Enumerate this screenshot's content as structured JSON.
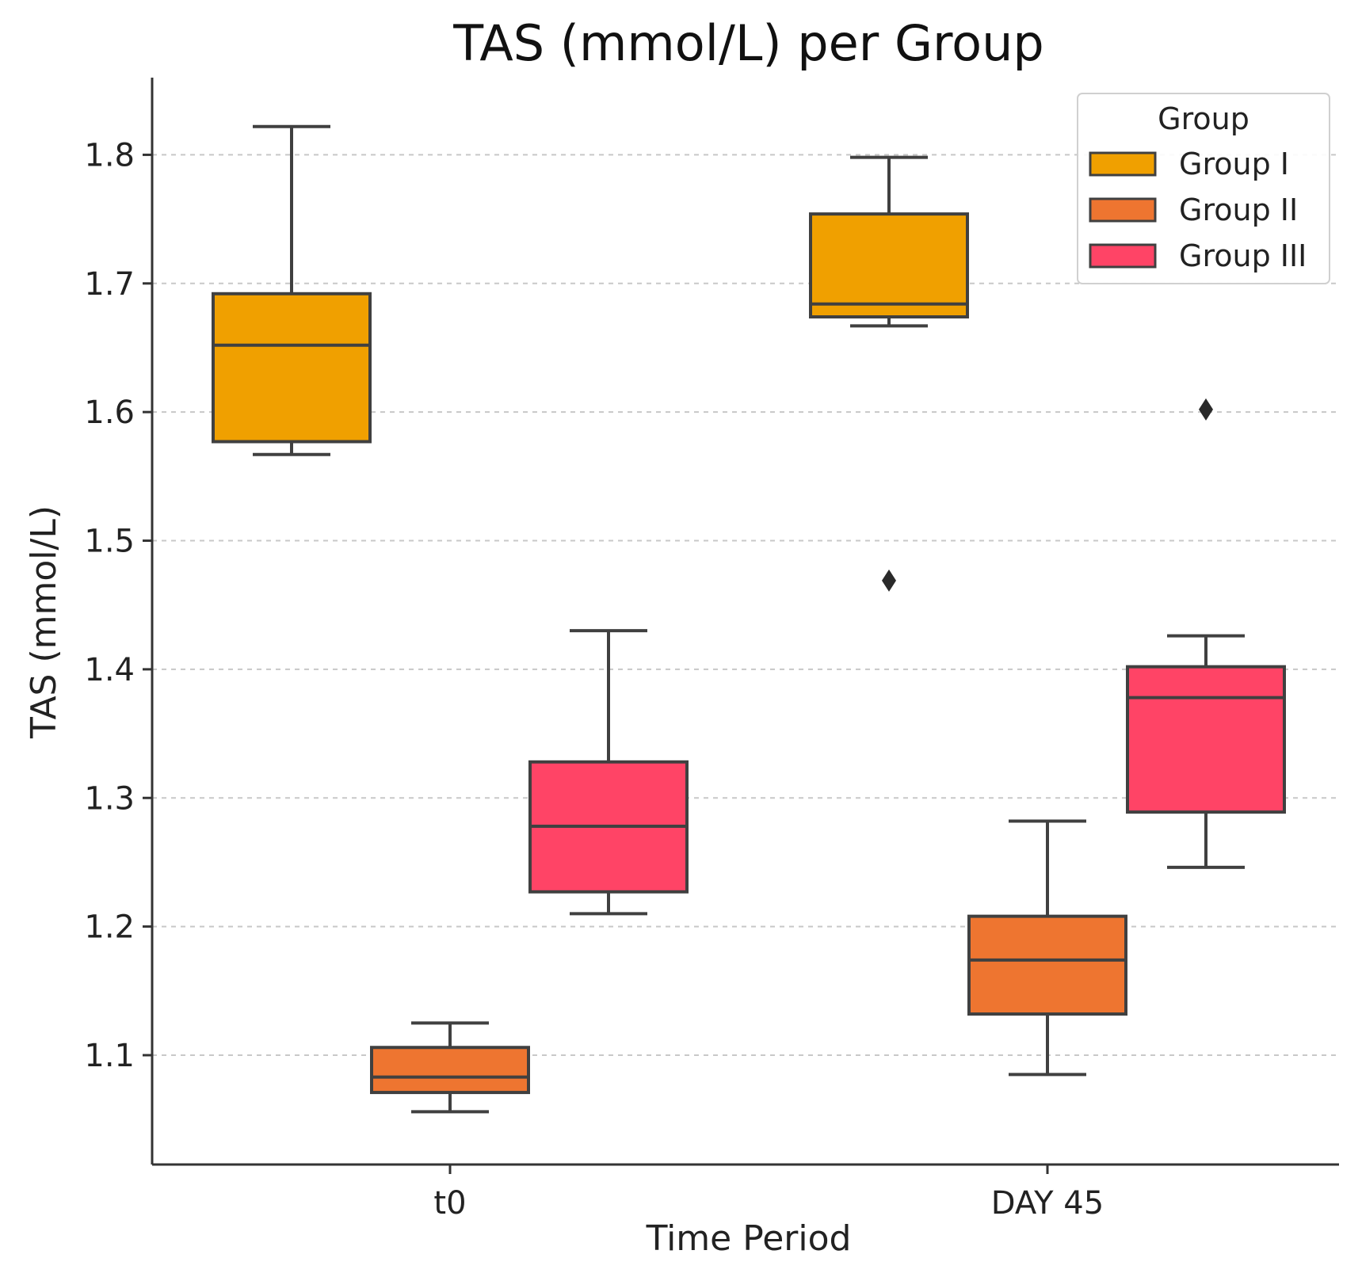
{
  "chart_data": {
    "type": "boxplot",
    "title": "TAS (mmol/L) per Group",
    "xlabel": "Time Period",
    "ylabel": "TAS (mmol/L)",
    "ylim": [
      1.015,
      1.86
    ],
    "yticks": [
      1.1,
      1.2,
      1.3,
      1.4,
      1.5,
      1.6,
      1.7,
      1.8
    ],
    "ytick_labels": [
      "1.1",
      "1.2",
      "1.3",
      "1.4",
      "1.5",
      "1.6",
      "1.7",
      "1.8"
    ],
    "categories": [
      "t0",
      "DAY 45"
    ],
    "grid": "y-dashed",
    "legend": {
      "title": "Group",
      "position": "top-right"
    },
    "series": [
      {
        "name": "Group I",
        "color": "#F0A000",
        "boxes": [
          {
            "whislo": 1.567,
            "q1": 1.577,
            "med": 1.652,
            "q3": 1.692,
            "whishi": 1.822,
            "fliers": []
          },
          {
            "whislo": 1.667,
            "q1": 1.674,
            "med": 1.684,
            "q3": 1.754,
            "whishi": 1.798,
            "fliers": [
              1.469
            ]
          }
        ]
      },
      {
        "name": "Group II",
        "color": "#EE7530",
        "boxes": [
          {
            "whislo": 1.056,
            "q1": 1.071,
            "med": 1.083,
            "q3": 1.106,
            "whishi": 1.125,
            "fliers": []
          },
          {
            "whislo": 1.085,
            "q1": 1.132,
            "med": 1.174,
            "q3": 1.208,
            "whishi": 1.282,
            "fliers": []
          }
        ]
      },
      {
        "name": "Group III",
        "color": "#FF4466",
        "boxes": [
          {
            "whislo": 1.21,
            "q1": 1.227,
            "med": 1.278,
            "q3": 1.328,
            "whishi": 1.43,
            "fliers": []
          },
          {
            "whislo": 1.246,
            "q1": 1.289,
            "med": 1.378,
            "q3": 1.402,
            "whishi": 1.426,
            "fliers": [
              1.602
            ]
          }
        ]
      }
    ]
  }
}
